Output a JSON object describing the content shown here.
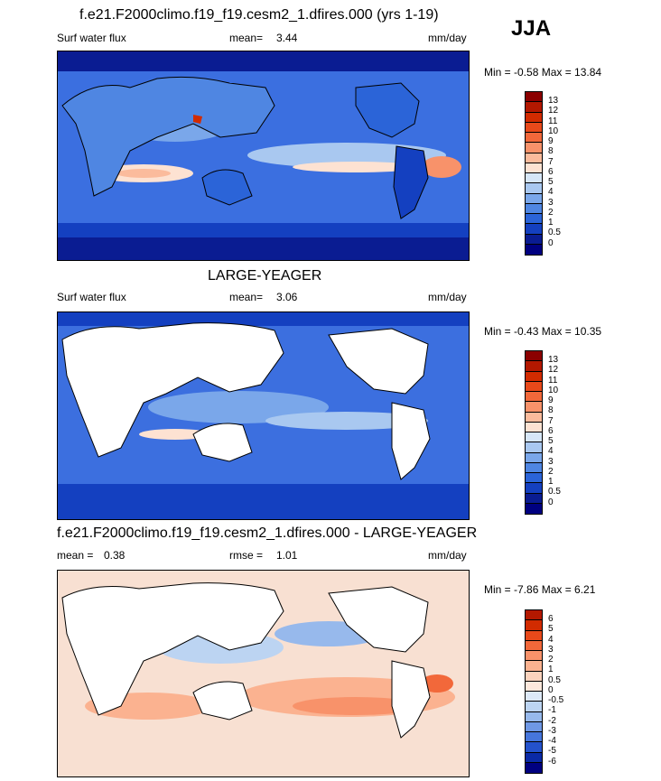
{
  "season": "JJA",
  "panels": [
    {
      "title": "f.e21.F2000climo.f19_f19.cesm2_1.dfires.000 (yrs 1-19)",
      "left_label": "Surf water flux",
      "mean_label": "mean=",
      "mean_value": "3.44",
      "units": "mm/day",
      "minmax": "Min =  -0.58 Max =  13.84",
      "colorbar": {
        "levels": [
          "13",
          "12",
          "11",
          "10",
          "9",
          "8",
          "7",
          "6",
          "5",
          "4",
          "3",
          "2",
          "1",
          "0.5",
          "0"
        ],
        "colors": [
          "#8b0000",
          "#b31800",
          "#d22b00",
          "#e8491a",
          "#f2683a",
          "#f8926a",
          "#fbbb9c",
          "#fde2d2",
          "#d6e6f7",
          "#a9c8f0",
          "#7aa7ea",
          "#4f86e2",
          "#2b64d8",
          "#1440c0",
          "#0a1c92",
          "#000080"
        ]
      }
    },
    {
      "title": "LARGE-YEAGER",
      "left_label": "Surf water flux",
      "mean_label": "mean=",
      "mean_value": "3.06",
      "units": "mm/day",
      "minmax": "Min =  -0.43 Max =  10.35",
      "colorbar": {
        "levels": [
          "13",
          "12",
          "11",
          "10",
          "9",
          "8",
          "7",
          "6",
          "5",
          "4",
          "3",
          "2",
          "1",
          "0.5",
          "0"
        ],
        "colors": [
          "#8b0000",
          "#b31800",
          "#d22b00",
          "#e8491a",
          "#f2683a",
          "#f8926a",
          "#fbbb9c",
          "#fde2d2",
          "#d6e6f7",
          "#a9c8f0",
          "#7aa7ea",
          "#4f86e2",
          "#2b64d8",
          "#1440c0",
          "#0a1c92",
          "#000080"
        ]
      }
    },
    {
      "title": "f.e21.F2000climo.f19_f19.cesm2_1.dfires.000 - LARGE-YEAGER",
      "left_label": "mean =",
      "left_value": "0.38",
      "rmse_label": "rmse =",
      "rmse_value": "1.01",
      "units": "mm/day",
      "minmax": "Min =  -7.86 Max =   6.21",
      "colorbar": {
        "levels": [
          "6",
          "5",
          "4",
          "3",
          "2",
          "1",
          "0.5",
          "0",
          "-0.5",
          "-1",
          "-2",
          "-3",
          "-4",
          "-5",
          "-6"
        ],
        "colors": [
          "#b31800",
          "#d22b00",
          "#e8491a",
          "#f2683a",
          "#f8926a",
          "#fbb290",
          "#fcd3bd",
          "#fde8dc",
          "#dde9f8",
          "#bcd4f2",
          "#97b9ec",
          "#6f98e5",
          "#4676dc",
          "#2452cc",
          "#0a2aa6",
          "#000080"
        ]
      }
    }
  ],
  "map_colors": {
    "panel1_ocean": "#3b6fe0",
    "panel2_ocean": "#3c6fdf",
    "panel3_ocean": "#f8e0d2",
    "land_white": "#ffffff"
  }
}
